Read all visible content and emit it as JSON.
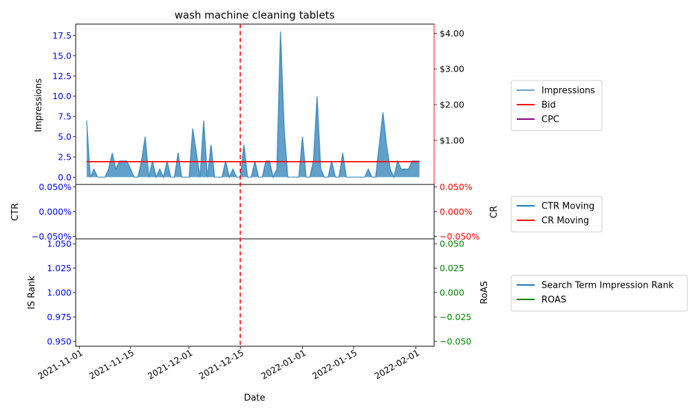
{
  "chart_data": {
    "type": "area",
    "title": "wash machine cleaning tablets",
    "xlabel": "Date",
    "x_tick_labels": [
      "2021-11-01",
      "2021-11-15",
      "2021-12-01",
      "2021-12-15",
      "2022-01-01",
      "2022-01-15",
      "2022-02-01"
    ],
    "x_ticks": [
      "2021-11-01",
      "2021-11-15",
      "2021-12-01",
      "2021-12-15",
      "2022-01-01",
      "2022-01-15",
      "2022-02-01"
    ],
    "xlim": [
      "2021-10-31",
      "2022-02-06"
    ],
    "marker_date": "2021-12-15",
    "colors": {
      "impressions": "#1f77b4",
      "bid": "#ff0000",
      "cpc": "#800080",
      "left_axis": "#0000ff",
      "right_axis_top": "#000000",
      "right_axis_mid": "#ff0000",
      "right_axis_bottom": "#008000",
      "marker": "#ff0000"
    },
    "panels": [
      {
        "left_label": "Impressions",
        "right_label": "",
        "left_ylim": [
          -0.9,
          18.9
        ],
        "left_ticks": [
          "0.0",
          "2.5",
          "5.0",
          "7.5",
          "10.0",
          "12.5",
          "15.0",
          "17.5"
        ],
        "left_tick_values": [
          0,
          2.5,
          5,
          7.5,
          10,
          12.5,
          15,
          17.5
        ],
        "right_ylim": [
          -0.24,
          4.26
        ],
        "right_ticks": [
          "$1.00",
          "$2.00",
          "$3.00",
          "$4.00"
        ],
        "right_tick_values": [
          1,
          2,
          3,
          4
        ],
        "legend": [
          "Impressions",
          "Bid",
          "CPC"
        ],
        "series": [
          {
            "name": "Impressions",
            "style": "area",
            "points": [
              [
                "2021-11-03",
                7
              ],
              [
                "2021-11-04",
                0
              ],
              [
                "2021-11-05",
                1
              ],
              [
                "2021-11-06",
                0
              ],
              [
                "2021-11-07",
                0
              ],
              [
                "2021-11-08",
                0
              ],
              [
                "2021-11-09",
                1
              ],
              [
                "2021-11-10",
                3
              ],
              [
                "2021-11-11",
                1
              ],
              [
                "2021-11-12",
                2
              ],
              [
                "2021-11-13",
                2
              ],
              [
                "2021-11-14",
                2
              ],
              [
                "2021-11-15",
                1
              ],
              [
                "2021-11-16",
                0
              ],
              [
                "2021-11-17",
                0
              ],
              [
                "2021-11-18",
                2
              ],
              [
                "2021-11-19",
                5
              ],
              [
                "2021-11-20",
                0
              ],
              [
                "2021-11-21",
                2
              ],
              [
                "2021-11-22",
                0
              ],
              [
                "2021-11-23",
                1
              ],
              [
                "2021-11-24",
                0
              ],
              [
                "2021-11-25",
                2
              ],
              [
                "2021-11-26",
                0
              ],
              [
                "2021-11-27",
                0
              ],
              [
                "2021-11-28",
                3
              ],
              [
                "2021-11-29",
                0
              ],
              [
                "2021-11-30",
                0
              ],
              [
                "2021-12-01",
                0
              ],
              [
                "2021-12-02",
                6
              ],
              [
                "2021-12-03",
                3
              ],
              [
                "2021-12-04",
                0
              ],
              [
                "2021-12-05",
                7
              ],
              [
                "2021-12-06",
                0
              ],
              [
                "2021-12-07",
                4
              ],
              [
                "2021-12-08",
                0
              ],
              [
                "2021-12-09",
                0
              ],
              [
                "2021-12-10",
                0
              ],
              [
                "2021-12-11",
                2
              ],
              [
                "2021-12-12",
                0
              ],
              [
                "2021-12-13",
                1
              ],
              [
                "2021-12-14",
                0
              ],
              [
                "2021-12-15",
                0
              ],
              [
                "2021-12-16",
                4
              ],
              [
                "2021-12-17",
                0
              ],
              [
                "2021-12-18",
                0
              ],
              [
                "2021-12-19",
                2
              ],
              [
                "2021-12-20",
                0
              ],
              [
                "2021-12-21",
                0
              ],
              [
                "2021-12-22",
                2
              ],
              [
                "2021-12-23",
                2
              ],
              [
                "2021-12-24",
                0
              ],
              [
                "2021-12-25",
                1
              ],
              [
                "2021-12-26",
                18
              ],
              [
                "2021-12-27",
                6
              ],
              [
                "2021-12-28",
                0
              ],
              [
                "2021-12-29",
                0
              ],
              [
                "2021-12-30",
                0
              ],
              [
                "2021-12-31",
                0
              ],
              [
                "2022-01-01",
                5
              ],
              [
                "2022-01-02",
                0
              ],
              [
                "2022-01-03",
                0
              ],
              [
                "2022-01-04",
                2
              ],
              [
                "2022-01-05",
                10
              ],
              [
                "2022-01-06",
                1
              ],
              [
                "2022-01-07",
                0
              ],
              [
                "2022-01-08",
                0
              ],
              [
                "2022-01-09",
                2
              ],
              [
                "2022-01-10",
                0
              ],
              [
                "2022-01-11",
                0
              ],
              [
                "2022-01-12",
                3
              ],
              [
                "2022-01-13",
                0
              ],
              [
                "2022-01-14",
                0
              ],
              [
                "2022-01-15",
                0
              ],
              [
                "2022-01-16",
                0
              ],
              [
                "2022-01-17",
                0
              ],
              [
                "2022-01-18",
                0
              ],
              [
                "2022-01-19",
                1
              ],
              [
                "2022-01-20",
                0
              ],
              [
                "2022-01-21",
                0
              ],
              [
                "2022-01-22",
                4
              ],
              [
                "2022-01-23",
                8
              ],
              [
                "2022-01-24",
                4
              ],
              [
                "2022-01-25",
                1
              ],
              [
                "2022-01-26",
                0
              ],
              [
                "2022-01-27",
                2
              ],
              [
                "2022-01-28",
                1
              ],
              [
                "2022-01-29",
                1
              ],
              [
                "2022-01-30",
                1
              ],
              [
                "2022-01-31",
                2
              ],
              [
                "2022-02-01",
                2
              ],
              [
                "2022-02-02",
                2
              ]
            ]
          },
          {
            "name": "Bid",
            "style": "line",
            "axis": "right",
            "points": [
              [
                "2021-11-03",
                0.4
              ],
              [
                "2022-02-02",
                0.4
              ]
            ]
          },
          {
            "name": "CPC",
            "style": "line",
            "axis": "right",
            "points": []
          }
        ]
      },
      {
        "left_label": "CTR",
        "right_label": "CR",
        "left_ylim": [
          -0.055,
          0.055
        ],
        "left_ticks": [
          "−0.050%",
          "0.000%",
          "0.050%"
        ],
        "left_tick_values": [
          -0.05,
          0,
          0.05
        ],
        "right_ylim": [
          -0.055,
          0.055
        ],
        "right_ticks": [
          "−0.050%",
          "0.000%",
          "0.050%"
        ],
        "right_tick_values": [
          -0.05,
          0,
          0.05
        ],
        "legend": [
          "CTR Moving",
          "CR Moving"
        ],
        "series": [
          {
            "name": "CTR Moving",
            "style": "line",
            "points": []
          },
          {
            "name": "CR Moving",
            "style": "line",
            "points": []
          }
        ]
      },
      {
        "left_label": "IS Rank",
        "right_label": "RoAS",
        "left_ylim": [
          0.945,
          1.055
        ],
        "left_ticks": [
          "0.950",
          "0.975",
          "1.000",
          "1.025",
          "1.050"
        ],
        "left_tick_values": [
          0.95,
          0.975,
          1.0,
          1.025,
          1.05
        ],
        "right_ylim": [
          -0.055,
          0.055
        ],
        "right_ticks": [
          "−0.050",
          "−0.025",
          "0.000",
          "0.025",
          "0.050"
        ],
        "right_tick_values": [
          -0.05,
          -0.025,
          0,
          0.025,
          0.05
        ],
        "legend": [
          "Search Term Impression Rank",
          "ROAS"
        ],
        "series": [
          {
            "name": "Search Term Impression Rank",
            "style": "line",
            "points": []
          },
          {
            "name": "ROAS",
            "style": "line",
            "points": []
          }
        ]
      }
    ]
  }
}
